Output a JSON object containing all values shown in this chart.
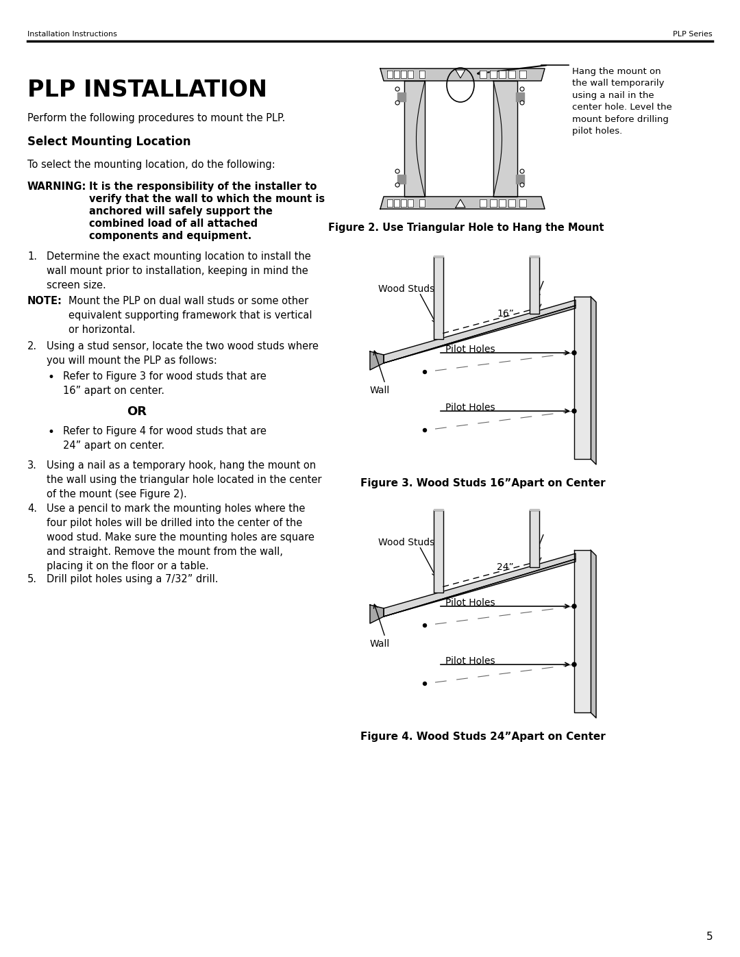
{
  "bg_color": "#ffffff",
  "header_left": "Installation Instructions",
  "header_right": "PLP Series",
  "page_number": "5",
  "main_title": "PLP INSTALLATION",
  "intro_text": "Perform the following procedures to mount the PLP.",
  "section_heading": "Select Mounting Location",
  "section_intro": "To select the mounting location, do the following:",
  "warning_label": "WARNING:",
  "warning_text": "It is the responsibility of the installer to\nverify that the wall to which the mount is\nanchored will safely support the\ncombined load of all attached\ncomponents and equipment.",
  "note_label": "NOTE:",
  "note_text": "Mount the PLP on dual wall studs or some other\nequivalent supporting framework that is vertical\nor horizontal.",
  "fig2_caption": "Figure 2. Use Triangular Hole to Hang the Mount",
  "fig2_annotation": "Hang the mount on\nthe wall temporarily\nusing a nail in the\ncenter hole. Level the\nmount before drilling\npilot holes.",
  "fig3_caption": "Figure 3. Wood Studs 16”Apart on Center",
  "fig4_caption": "Figure 4. Wood Studs 24”Apart on Center",
  "fig3_label_studs": "Wood Studs",
  "fig3_label_wall": "Wall",
  "fig3_label_pilot1": "Pilot Holes",
  "fig3_label_pilot2": "Pilot Holes",
  "fig3_dim": "16”",
  "fig4_label_studs": "Wood Studs",
  "fig4_label_wall": "Wall",
  "fig4_label_pilot1": "Pilot Holes",
  "fig4_label_pilot2": "Pilot Holes",
  "fig4_dim": "24”"
}
